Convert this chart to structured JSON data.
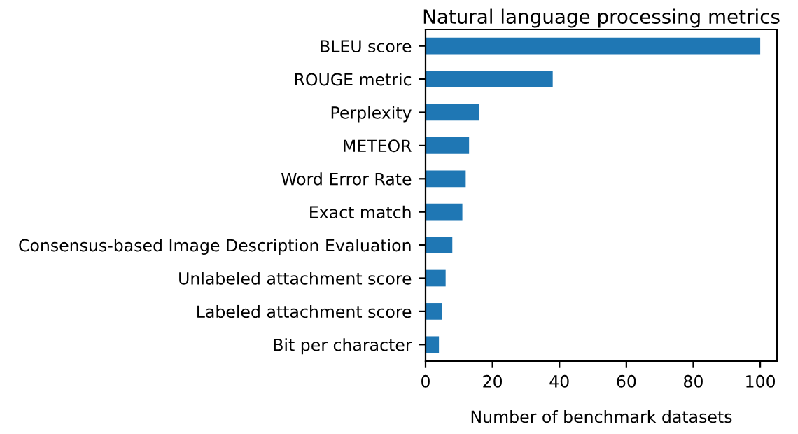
{
  "chart_data": {
    "type": "bar",
    "orientation": "horizontal",
    "title": "Natural language processing metrics",
    "xlabel": "Number of benchmark datasets",
    "categories": [
      "BLEU score",
      "ROUGE metric",
      "Perplexity",
      "METEOR",
      "Word Error Rate",
      "Exact match",
      "Consensus-based Image Description Evaluation",
      "Unlabeled attachment score",
      "Labeled attachment score",
      "Bit per character"
    ],
    "values": [
      100,
      38,
      16,
      13,
      12,
      11,
      8,
      6,
      5,
      4
    ],
    "color": "#1f77b4",
    "xlim": [
      0,
      105
    ],
    "xticks": [
      0,
      20,
      40,
      60,
      80,
      100
    ],
    "grid": false,
    "legend": false
  }
}
